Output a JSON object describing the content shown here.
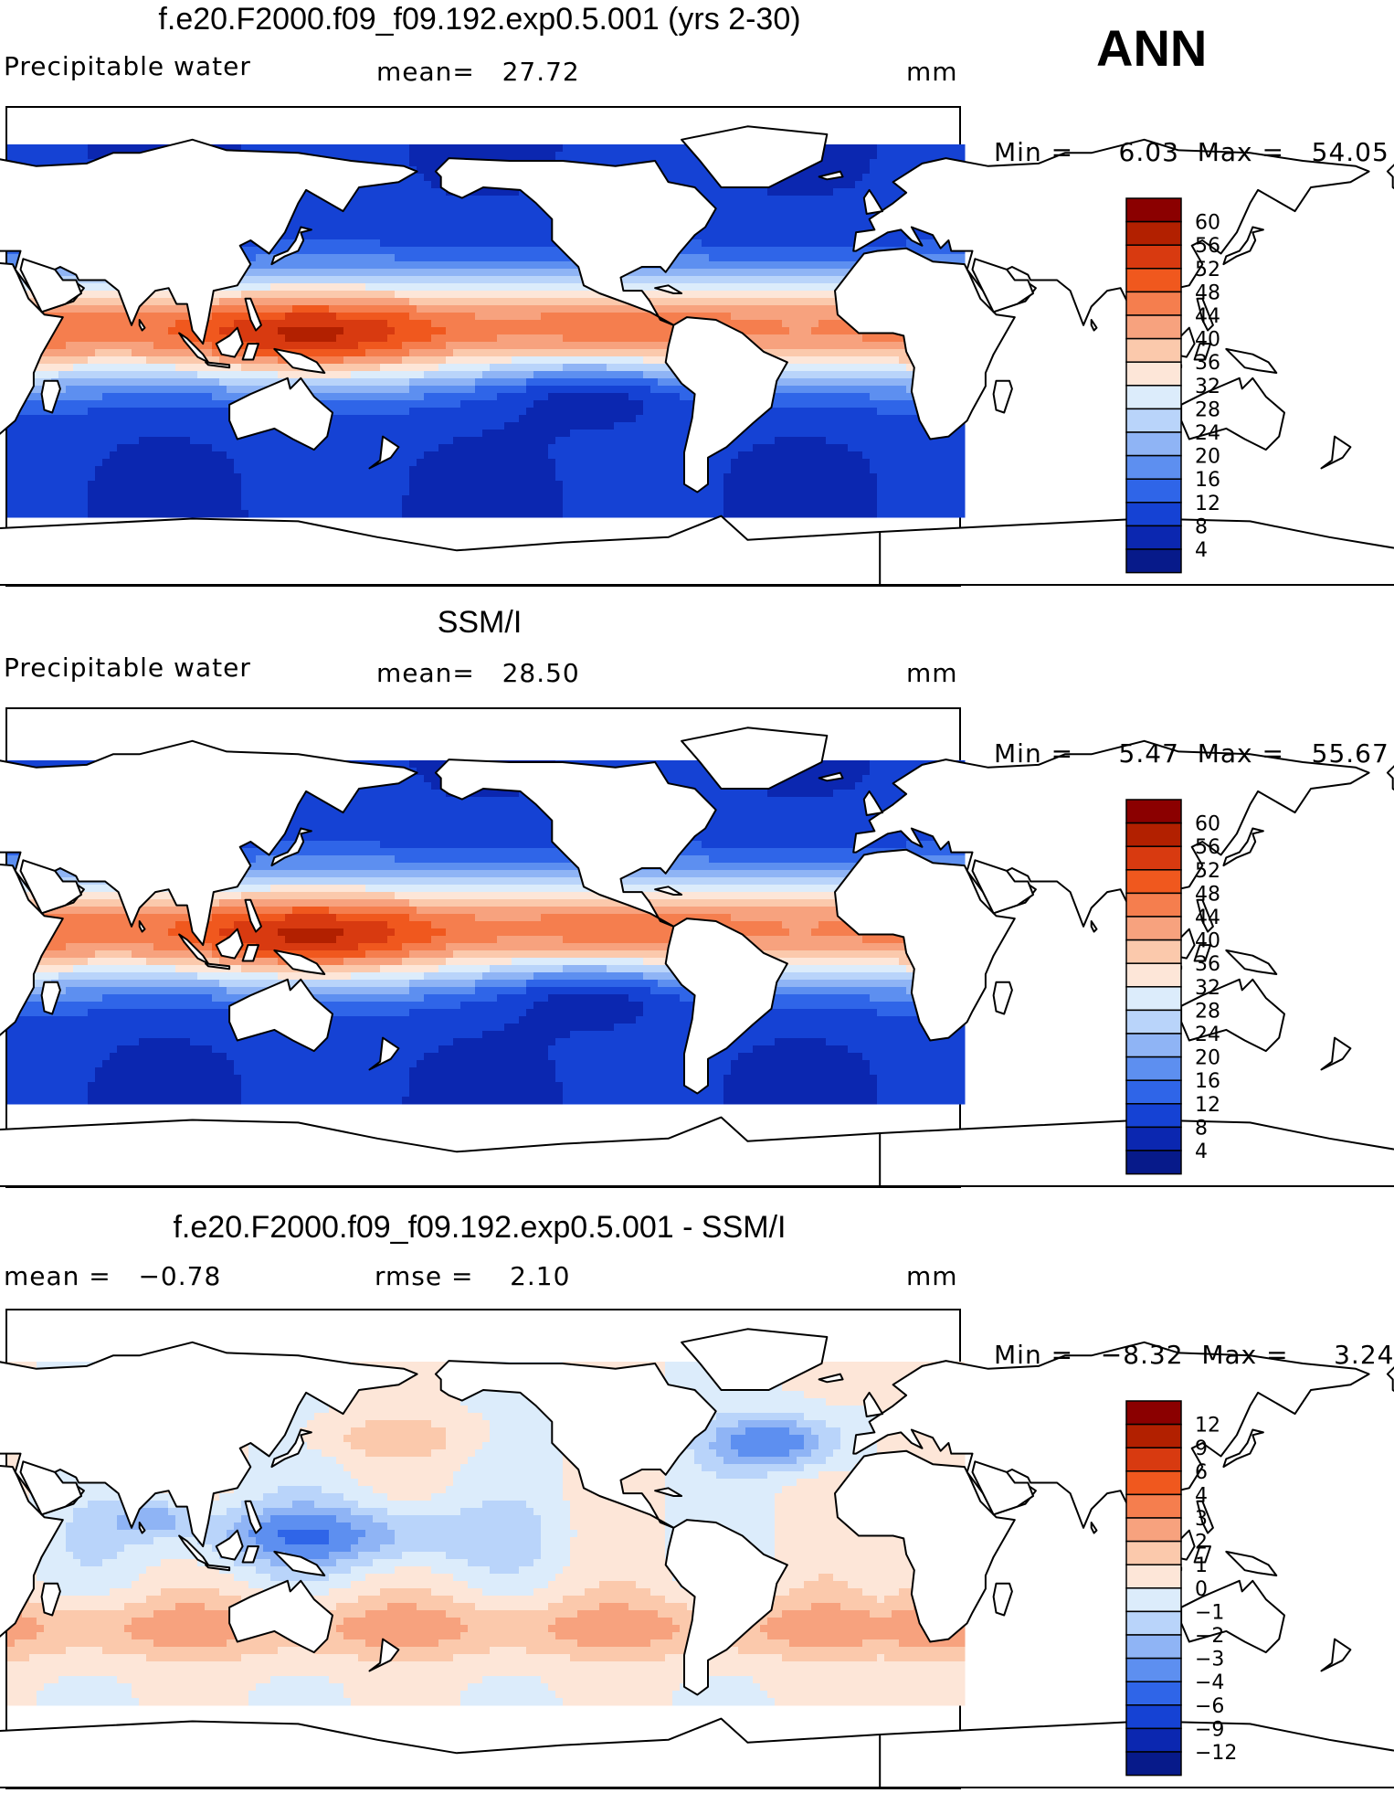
{
  "season": "ANN",
  "panels": [
    {
      "id": "model",
      "title": "f.e20.F2000.f09_f09.192.exp0.5.001 (yrs 2-30)",
      "left_label": "Precipitable water",
      "mid_label": "mean=   27.72",
      "units": "mm",
      "min_max": "Min =     6.03  Max =   54.05",
      "levels": [
        "60",
        "56",
        "52",
        "48",
        "44",
        "40",
        "36",
        "32",
        "28",
        "24",
        "20",
        "16",
        "12",
        "8",
        "4"
      ],
      "colors": [
        "#8b0000",
        "#b22000",
        "#d83a10",
        "#f0581e",
        "#f57e4e",
        "#f7a27e",
        "#fbc9ac",
        "#fde6d8",
        "#dcecfb",
        "#b9d4fa",
        "#8fb4f5",
        "#5d8ff0",
        "#2f65e8",
        "#1542d4",
        "#0b27b0",
        "#071a8a"
      ],
      "field": "pw"
    },
    {
      "id": "obs",
      "title": "SSM/I",
      "left_label": "Precipitable water",
      "mid_label": "mean=   28.50",
      "units": "mm",
      "min_max": "Min =     5.47  Max =   55.67",
      "levels": [
        "60",
        "56",
        "52",
        "48",
        "44",
        "40",
        "36",
        "32",
        "28",
        "24",
        "20",
        "16",
        "12",
        "8",
        "4"
      ],
      "colors": [
        "#8b0000",
        "#b22000",
        "#d83a10",
        "#f0581e",
        "#f57e4e",
        "#f7a27e",
        "#fbc9ac",
        "#fde6d8",
        "#dcecfb",
        "#b9d4fa",
        "#8fb4f5",
        "#5d8ff0",
        "#2f65e8",
        "#1542d4",
        "#0b27b0",
        "#071a8a"
      ],
      "field": "pw"
    },
    {
      "id": "diff",
      "title": "f.e20.F2000.f09_f09.192.exp0.5.001 - SSM/I",
      "left_label": "mean =   −0.78",
      "mid_label": "rmse =    2.10",
      "units": "mm",
      "min_max": "Min =   −8.32  Max =     3.24",
      "levels": [
        "12",
        "9",
        "6",
        "4",
        "3",
        "2",
        "1",
        "0",
        "−1",
        "−2",
        "−3",
        "−4",
        "−6",
        "−9",
        "−12"
      ],
      "colors": [
        "#8b0000",
        "#b22000",
        "#d83a10",
        "#f0581e",
        "#f57e4e",
        "#f7a27e",
        "#fbc9ac",
        "#fde6d8",
        "#dcecfb",
        "#b9d4fa",
        "#8fb4f5",
        "#5d8ff0",
        "#2f65e8",
        "#1542d4",
        "#0b27b0",
        "#071a8a"
      ],
      "field": "diff"
    }
  ]
}
